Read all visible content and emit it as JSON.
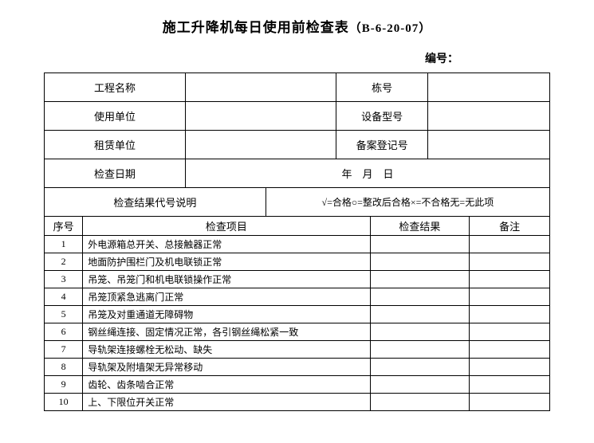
{
  "title_main": "施工升降机每日使用前检查表",
  "title_code": "（B-6-20-07）",
  "doc_number_label": "编号：",
  "header": {
    "project_name_label": "工程名称",
    "building_no_label": "栋号",
    "user_unit_label": "使用单位",
    "device_model_label": "设备型号",
    "lease_unit_label": "租赁单位",
    "record_no_label": "备案登记号",
    "check_date_label": "检查日期",
    "date_placeholder": "年　月　日"
  },
  "legend": {
    "label": "检查结果代号说明",
    "text": "√=合格○=整改后合格×=不合格无=无此项"
  },
  "columns": {
    "seq": "序号",
    "item": "检查项目",
    "result": "检查结果",
    "remark": "备注"
  },
  "items": [
    {
      "no": "1",
      "name": "外电源箱总开关、总接触器正常"
    },
    {
      "no": "2",
      "name": "地面防护围栏门及机电联锁正常"
    },
    {
      "no": "3",
      "name": "吊笼、吊笼门和机电联锁操作正常"
    },
    {
      "no": "4",
      "name": "吊笼顶紧急逃离门正常"
    },
    {
      "no": "5",
      "name": "吊笼及对重通道无障碍物"
    },
    {
      "no": "6",
      "name": "钢丝绳连接、固定情况正常，各引钢丝绳松紧一致"
    },
    {
      "no": "7",
      "name": "导轨架连接螺栓无松动、缺失"
    },
    {
      "no": "8",
      "name": "导轨架及附墙架无异常移动"
    },
    {
      "no": "9",
      "name": "齿轮、齿条啮合正常"
    },
    {
      "no": "10",
      "name": "上、下限位开关正常"
    }
  ]
}
